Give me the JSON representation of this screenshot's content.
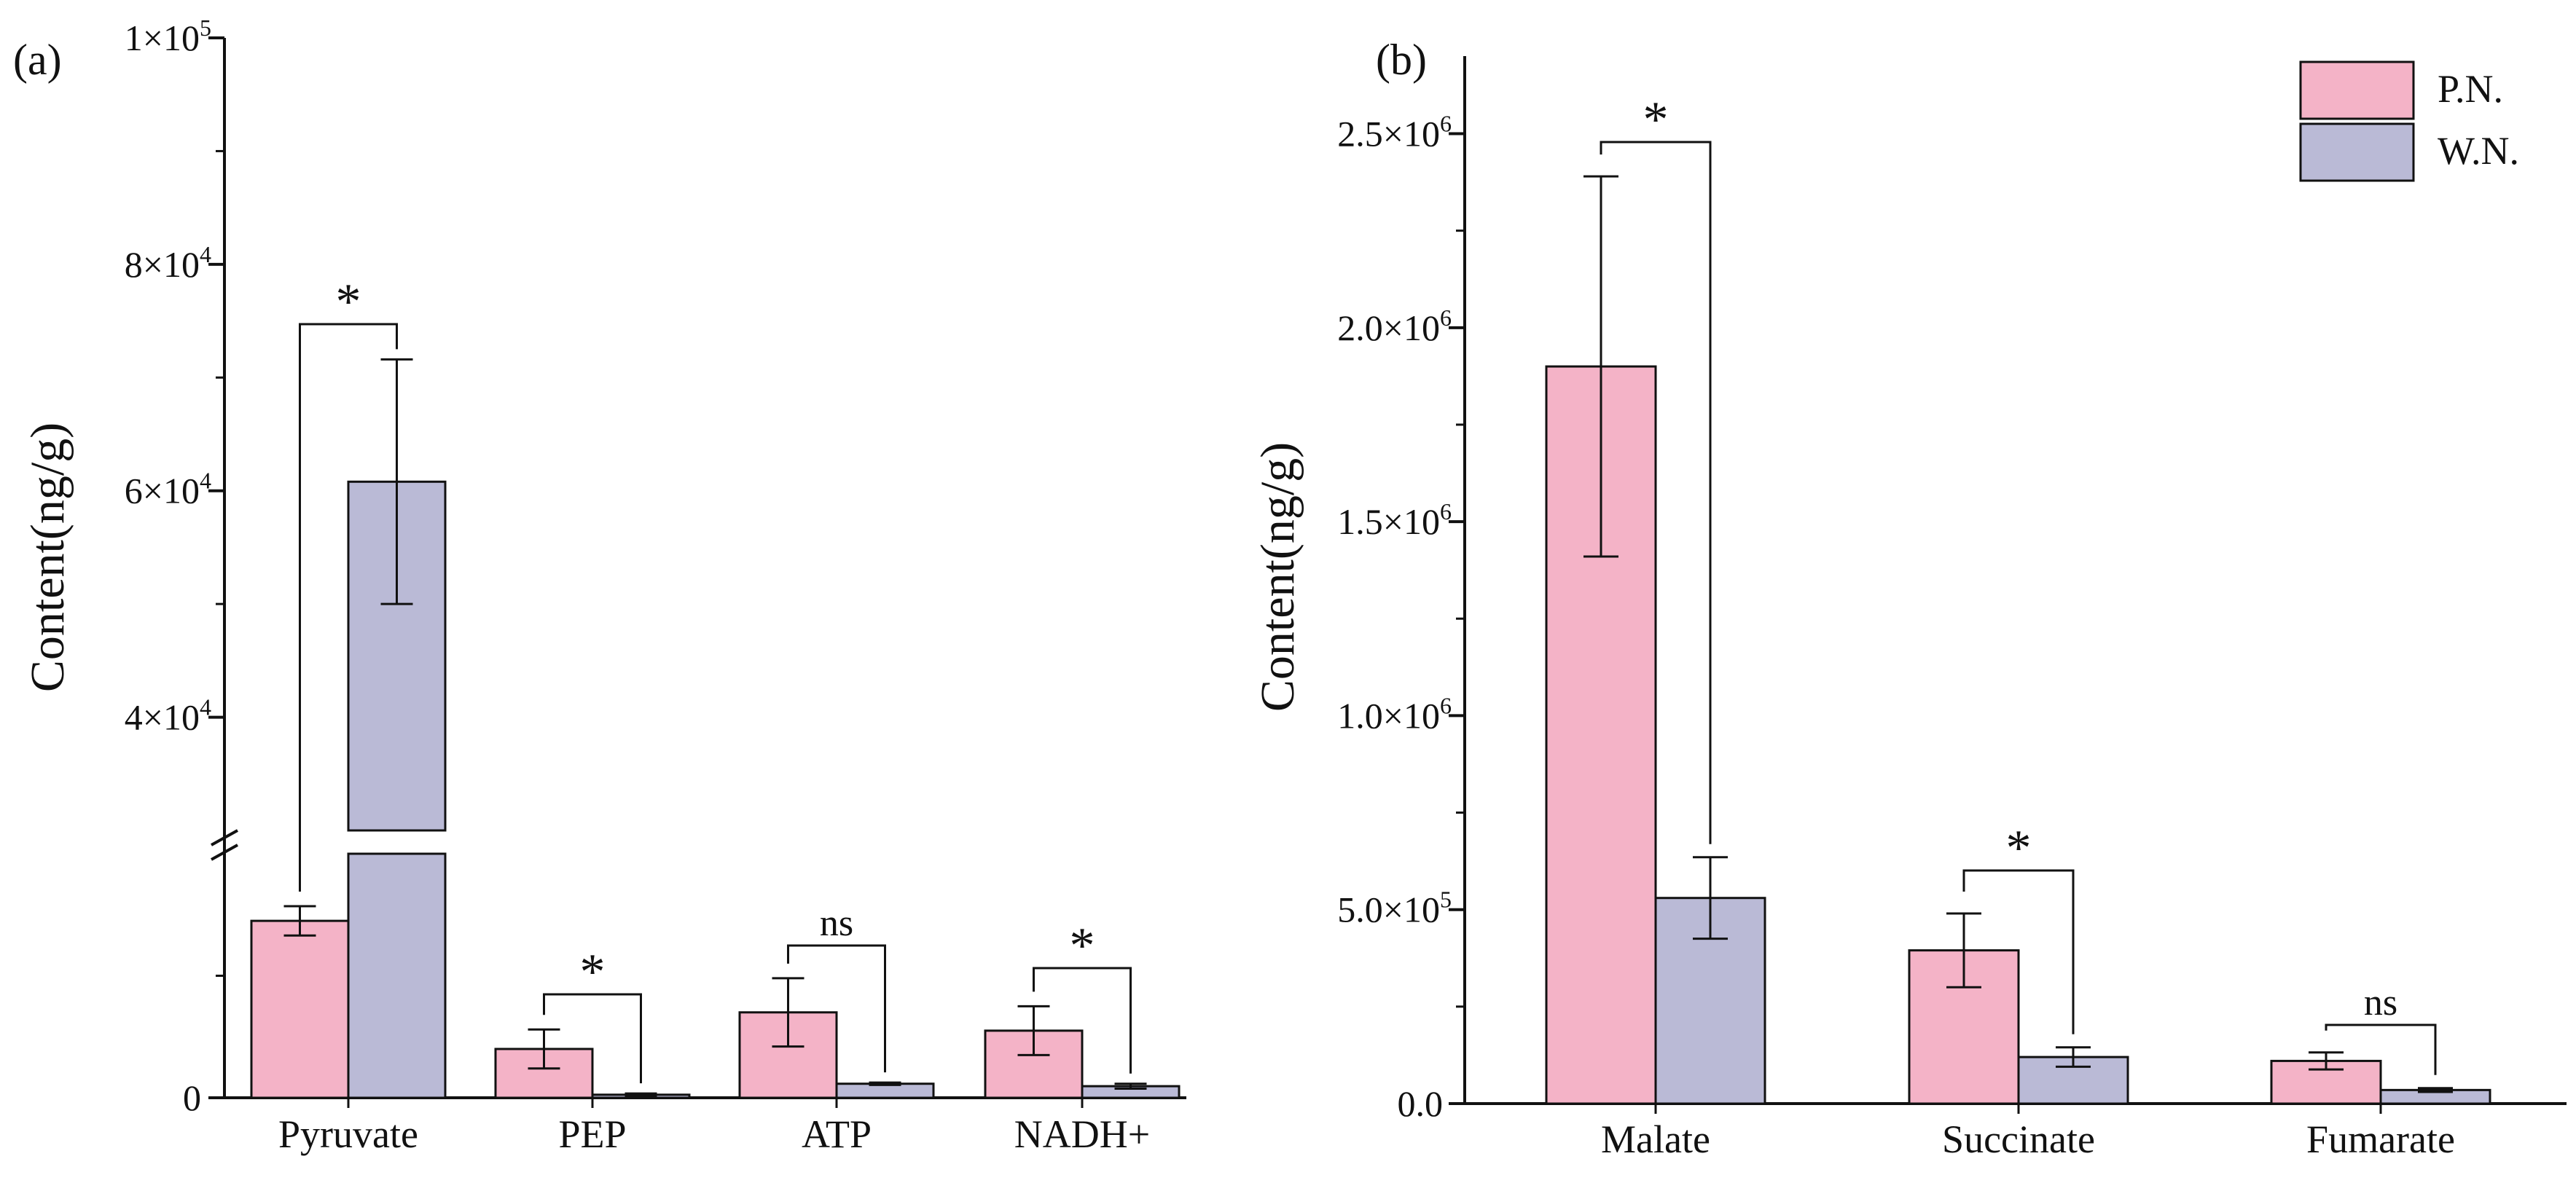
{
  "chart_data": [
    {
      "panel": "(a)",
      "type": "bar",
      "ylabel": "Content(ng/g)",
      "axis_break": true,
      "categories": [
        "Pyruvate",
        "PEP",
        "ATP",
        "NADH+"
      ],
      "series": [
        {
          "name": "P.N.",
          "color": "#F4B3C7",
          "values": [
            14500,
            4000,
            7000,
            5500
          ],
          "errors": [
            1200,
            1600,
            2800,
            2000
          ]
        },
        {
          "name": "W.N.",
          "color": "#BABAD6",
          "values": [
            60800,
            250,
            1150,
            950
          ],
          "errors": [
            10800,
            100,
            100,
            200
          ]
        }
      ],
      "lower_axis": {
        "range": [
          0,
          20000
        ],
        "ticks": [
          {
            "value": 0,
            "label": "0"
          }
        ]
      },
      "upper_axis": {
        "range": [
          30000,
          100000
        ],
        "ticks": [
          {
            "value": 40000,
            "mant": "4×10",
            "exp": "4"
          },
          {
            "value": 60000,
            "mant": "6×10",
            "exp": "4"
          },
          {
            "value": 80000,
            "mant": "8×10",
            "exp": "4"
          },
          {
            "value": 100000,
            "mant": "1×10",
            "exp": "5"
          }
        ]
      },
      "significance": [
        "*",
        "*",
        "ns",
        "*"
      ]
    },
    {
      "panel": "(b)",
      "type": "bar",
      "ylabel": "Content(ng/g)",
      "categories": [
        "Malate",
        "Succinate",
        "Fumarate"
      ],
      "ylim": [
        0,
        2700000
      ],
      "series": [
        {
          "name": "P.N.",
          "color": "#F4B3C7",
          "values": [
            1900000,
            395000,
            110000
          ],
          "errors": [
            490000,
            95000,
            22000
          ]
        },
        {
          "name": "W.N.",
          "color": "#BABAD6",
          "values": [
            530000,
            120000,
            35000
          ],
          "errors": [
            105000,
            25000,
            5000
          ]
        }
      ],
      "yticks": [
        {
          "value": 0,
          "plain": "0.0"
        },
        {
          "value": 500000,
          "mant": "5.0×10",
          "exp": "5"
        },
        {
          "value": 1000000,
          "mant": "1.0×10",
          "exp": "6"
        },
        {
          "value": 1500000,
          "mant": "1.5×10",
          "exp": "6"
        },
        {
          "value": 2000000,
          "mant": "2.0×10",
          "exp": "6"
        },
        {
          "value": 2500000,
          "mant": "2.5×10",
          "exp": "6"
        }
      ],
      "significance": [
        "*",
        "*",
        "ns"
      ],
      "legend": {
        "placement": "top-right",
        "entries": [
          "P.N.",
          "W.N."
        ]
      }
    }
  ]
}
